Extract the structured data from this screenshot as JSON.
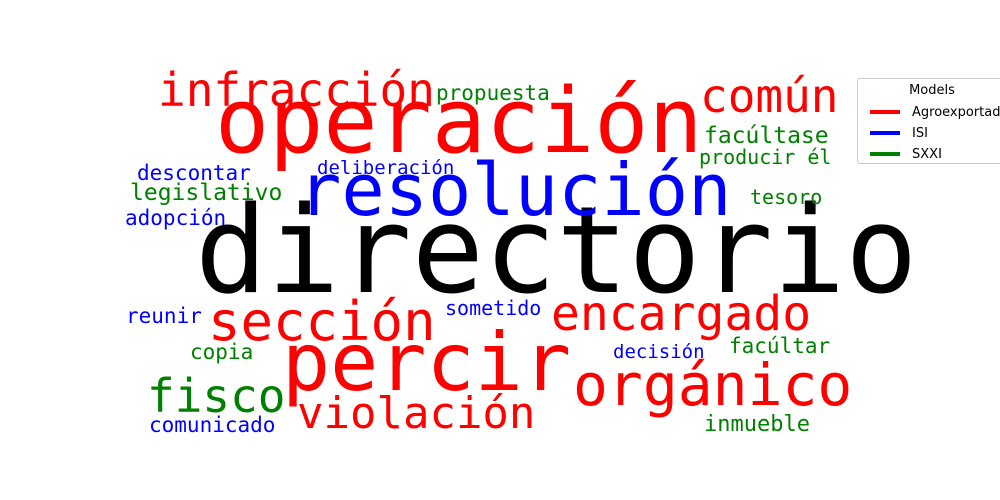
{
  "chart_data": {
    "type": "wordcloud",
    "legend": {
      "title": "Models",
      "placement": "top-right",
      "entries": [
        {
          "label": "Agroexportador",
          "color": "#ff0000"
        },
        {
          "label": "ISI",
          "color": "#0000ff"
        },
        {
          "label": "SXXI",
          "color": "#008000"
        }
      ]
    },
    "words": [
      {
        "text": "directorio",
        "model": "neutral",
        "color": "#000000"
      },
      {
        "text": "operación",
        "model": "Agroexportador",
        "color": "#ff0000"
      },
      {
        "text": "percir",
        "model": "Agroexportador",
        "color": "#ff0000"
      },
      {
        "text": "resolución",
        "model": "ISI",
        "color": "#0000ff"
      },
      {
        "text": "orgánico",
        "model": "Agroexportador",
        "color": "#ff0000"
      },
      {
        "text": "sección",
        "model": "Agroexportador",
        "color": "#ff0000"
      },
      {
        "text": "encargado",
        "model": "Agroexportador",
        "color": "#ff0000"
      },
      {
        "text": "infracción",
        "model": "Agroexportador",
        "color": "#ff0000"
      },
      {
        "text": "común",
        "model": "Agroexportador",
        "color": "#ff0000"
      },
      {
        "text": "violación",
        "model": "Agroexportador",
        "color": "#ff0000"
      },
      {
        "text": "fisco",
        "model": "SXXI",
        "color": "#008000"
      },
      {
        "text": "propuesta",
        "model": "SXXI",
        "color": "#008000"
      },
      {
        "text": "facúltase",
        "model": "SXXI",
        "color": "#008000"
      },
      {
        "text": "producir él",
        "model": "SXXI",
        "color": "#008000"
      },
      {
        "text": "legislativo",
        "model": "SXXI",
        "color": "#008000"
      },
      {
        "text": "tesoro",
        "model": "SXXI",
        "color": "#008000"
      },
      {
        "text": "copia",
        "model": "SXXI",
        "color": "#008000"
      },
      {
        "text": "facúltar",
        "model": "SXXI",
        "color": "#008000"
      },
      {
        "text": "inmueble",
        "model": "SXXI",
        "color": "#008000"
      },
      {
        "text": "descontar",
        "model": "ISI",
        "color": "#0000ff"
      },
      {
        "text": "deliberación",
        "model": "ISI",
        "color": "#0000ff"
      },
      {
        "text": "adopción",
        "model": "ISI",
        "color": "#0000ff"
      },
      {
        "text": "reunir",
        "model": "ISI",
        "color": "#0000ff"
      },
      {
        "text": "sometido",
        "model": "ISI",
        "color": "#0000ff"
      },
      {
        "text": "decisión",
        "model": "ISI",
        "color": "#0000ff"
      },
      {
        "text": "comunicado",
        "model": "ISI",
        "color": "#0000ff"
      }
    ]
  }
}
